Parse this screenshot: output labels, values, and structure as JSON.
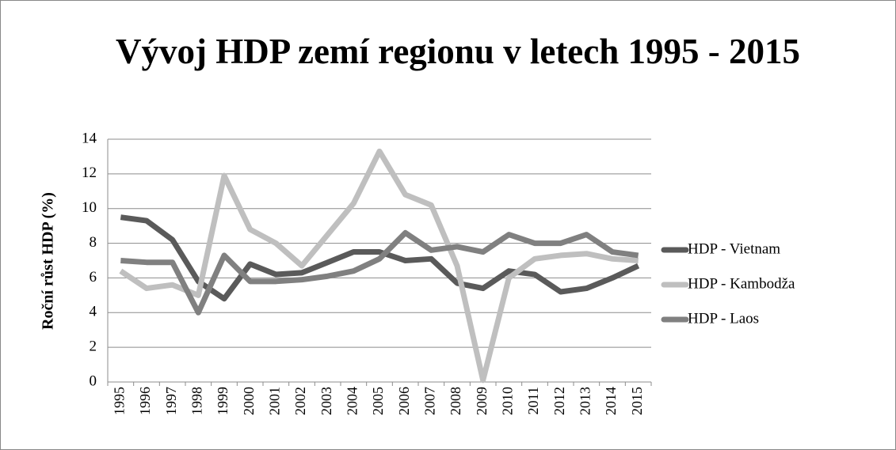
{
  "chart_data": {
    "type": "line",
    "title": "Vývoj HDP zemí regionu v letech 1995 - 2015",
    "y_label": "Roční růst HDP (%)",
    "categories": [
      "1995",
      "1996",
      "1997",
      "1998",
      "1999",
      "2000",
      "2001",
      "2002",
      "2003",
      "2004",
      "2005",
      "2006",
      "2007",
      "2008",
      "2009",
      "2010",
      "2011",
      "2012",
      "2013",
      "2014",
      "2015"
    ],
    "series": [
      {
        "name": "HDP - Vietnam",
        "color": "#5a5a5a",
        "values": [
          9.5,
          9.3,
          8.2,
          5.8,
          4.8,
          6.8,
          6.2,
          6.3,
          6.9,
          7.5,
          7.5,
          7.0,
          7.1,
          5.7,
          5.4,
          6.4,
          6.2,
          5.2,
          5.4,
          6.0,
          6.7
        ]
      },
      {
        "name": "HDP - Kambodža",
        "color": "#bfbfbf",
        "values": [
          6.4,
          5.4,
          5.6,
          5.0,
          11.9,
          8.8,
          8.0,
          6.7,
          8.5,
          10.3,
          13.3,
          10.8,
          10.2,
          6.7,
          0.1,
          6.0,
          7.1,
          7.3,
          7.4,
          7.1,
          7.0
        ]
      },
      {
        "name": "HDP - Laos",
        "color": "#808080",
        "values": [
          7.0,
          6.9,
          6.9,
          4.0,
          7.3,
          5.8,
          5.8,
          5.9,
          6.1,
          6.4,
          7.1,
          8.6,
          7.6,
          7.8,
          7.5,
          8.5,
          8.0,
          8.0,
          8.5,
          7.5,
          7.3
        ]
      }
    ],
    "ylim": [
      0,
      14
    ],
    "yticks": [
      0,
      2,
      4,
      6,
      8,
      10,
      12,
      14
    ],
    "grid": true,
    "legend": "right"
  }
}
